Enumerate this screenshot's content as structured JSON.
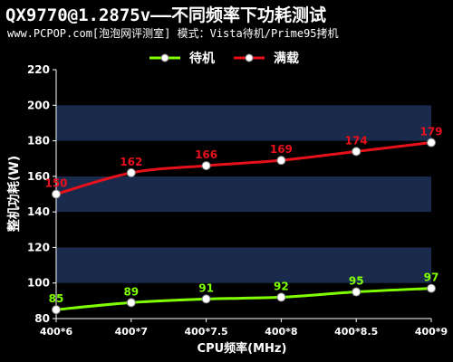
{
  "title": "QX9770@1.2875v——不同频率下功耗测试",
  "subtitle": "www.PCPOP.com[泡泡网评测室] 模式：Vista待机/Prime95拷机",
  "colors": {
    "background": "#000000",
    "plot_band_dark": "#000000",
    "plot_band_light": "#1a2a4d",
    "idle": "#7fff00",
    "load": "#e8101a",
    "axis_text": "#ffffff"
  },
  "chart_data": {
    "type": "line",
    "categories": [
      "400*6",
      "400*7",
      "400*7.5",
      "400*8",
      "400*8.5",
      "400*9"
    ],
    "series": [
      {
        "name": "待机",
        "color": "#7fff00",
        "values": [
          85,
          89,
          91,
          92,
          95,
          97
        ]
      },
      {
        "name": "满载",
        "color": "#e8101a",
        "values": [
          150,
          162,
          166,
          169,
          174,
          179
        ]
      }
    ],
    "xlabel": "CPU频率(MHz)",
    "ylabel": "整机功耗(W)",
    "ylim": [
      80,
      220
    ],
    "yticks": [
      80,
      100,
      120,
      140,
      160,
      180,
      200,
      220
    ],
    "legend_position": "top-center",
    "grid": true
  }
}
